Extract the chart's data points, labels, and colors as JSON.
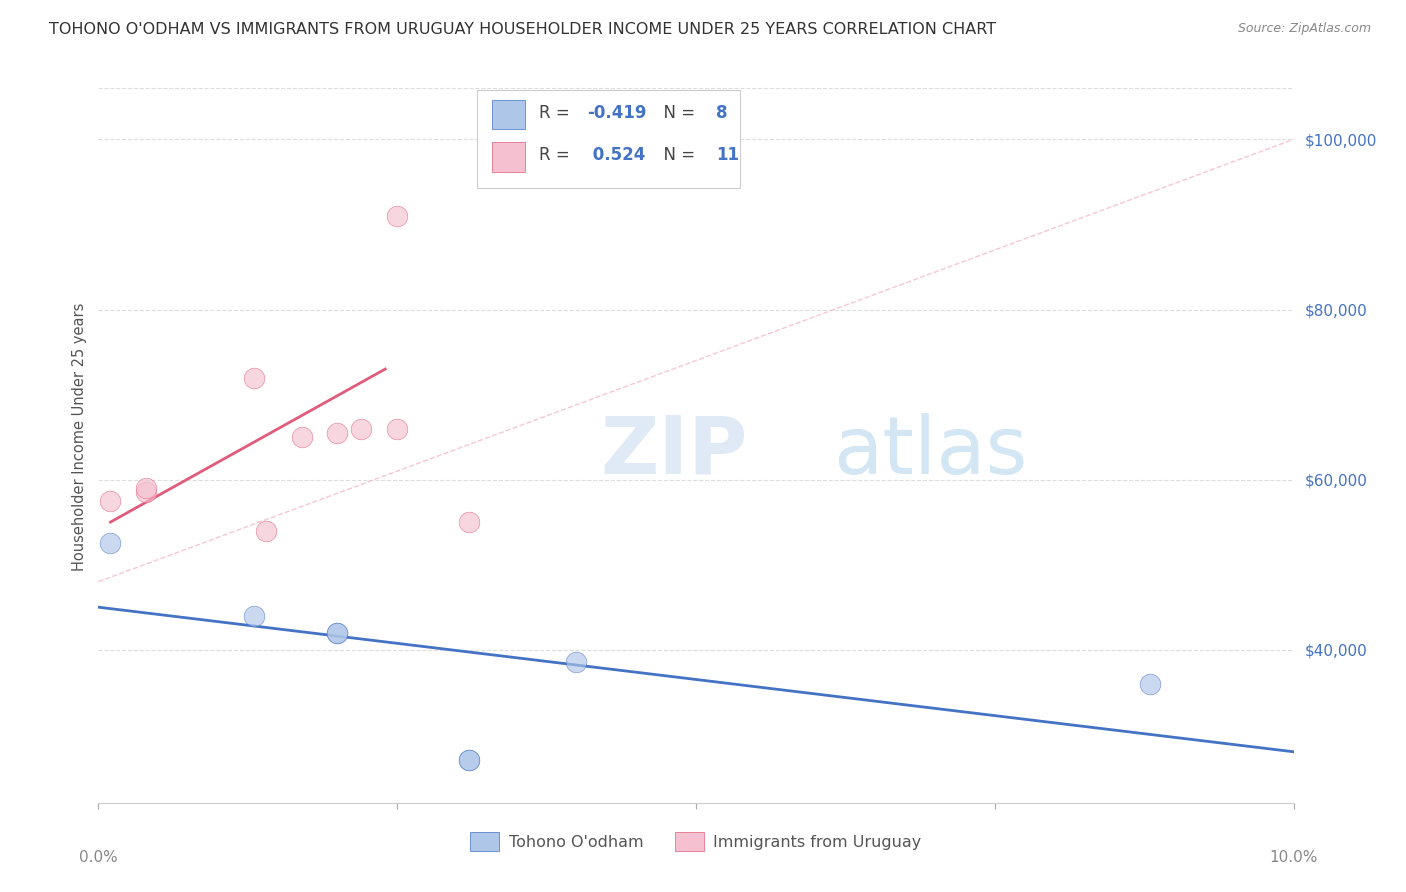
{
  "title": "TOHONO O'ODHAM VS IMMIGRANTS FROM URUGUAY HOUSEHOLDER INCOME UNDER 25 YEARS CORRELATION CHART",
  "source": "Source: ZipAtlas.com",
  "ylabel": "Householder Income Under 25 years",
  "yticks": [
    40000,
    60000,
    80000,
    100000
  ],
  "ytick_labels": [
    "$40,000",
    "$60,000",
    "$80,000",
    "$100,000"
  ],
  "xmin": 0.0,
  "xmax": 0.1,
  "ymin": 22000,
  "ymax": 108000,
  "legend_r_blue": "-0.419",
  "legend_n_blue": "8",
  "legend_r_pink": "0.524",
  "legend_n_pink": "11",
  "legend_label_blue": "Tohono O'odham",
  "legend_label_pink": "Immigrants from Uruguay",
  "blue_scatter_x": [
    0.001,
    0.013,
    0.02,
    0.02,
    0.04,
    0.088,
    0.031,
    0.031
  ],
  "blue_scatter_y": [
    52500,
    44000,
    42000,
    42000,
    38500,
    36000,
    27000,
    27000
  ],
  "pink_scatter_x": [
    0.001,
    0.004,
    0.004,
    0.013,
    0.017,
    0.02,
    0.022,
    0.025,
    0.025,
    0.031,
    0.014
  ],
  "pink_scatter_y": [
    57500,
    58500,
    59000,
    72000,
    65000,
    65500,
    66000,
    66000,
    91000,
    55000,
    54000
  ],
  "blue_line_x": [
    0.0,
    0.1
  ],
  "blue_line_y": [
    45000,
    28000
  ],
  "pink_line_x": [
    0.001,
    0.024
  ],
  "pink_line_y": [
    55000,
    73000
  ],
  "pink_dashed_line_x": [
    0.0,
    0.1
  ],
  "pink_dashed_line_y": [
    48000,
    100000
  ],
  "watermark_zip": "ZIP",
  "watermark_atlas": "atlas",
  "title_color": "#333333",
  "source_color": "#888888",
  "blue_color": "#aec6e8",
  "pink_color": "#f5c0cf",
  "blue_line_color": "#4472c4",
  "pink_line_color": "#e05c7a",
  "pink_dashed_color": "#f4b8c8",
  "axis_label_color": "#4472c4",
  "grid_color": "#dddddd",
  "background_color": "#ffffff"
}
